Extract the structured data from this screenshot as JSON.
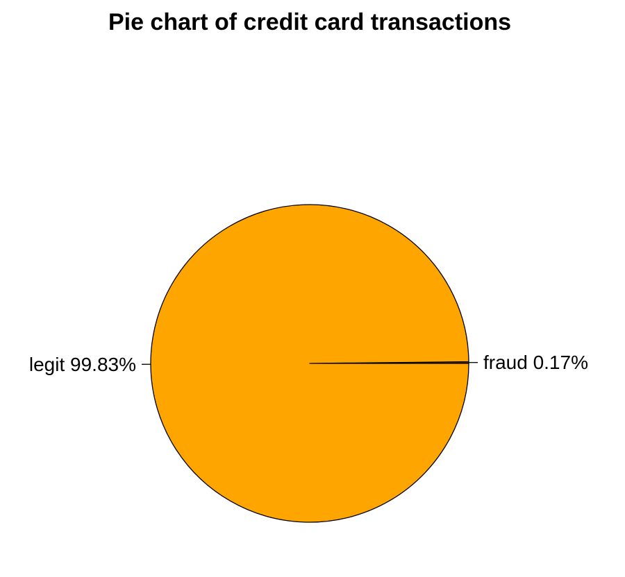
{
  "chart_data": {
    "type": "pie",
    "title": "Pie chart of credit card transactions",
    "slices": [
      {
        "name": "fraud",
        "percent": 0.17,
        "label": "fraud 0.17%",
        "color": "#5c3317"
      },
      {
        "name": "legit",
        "percent": 99.83,
        "label": "legit 99.83%",
        "color": "#ffa500"
      }
    ],
    "start_angle": "3 o'clock",
    "direction": "counterclockwise",
    "legend": "none"
  }
}
